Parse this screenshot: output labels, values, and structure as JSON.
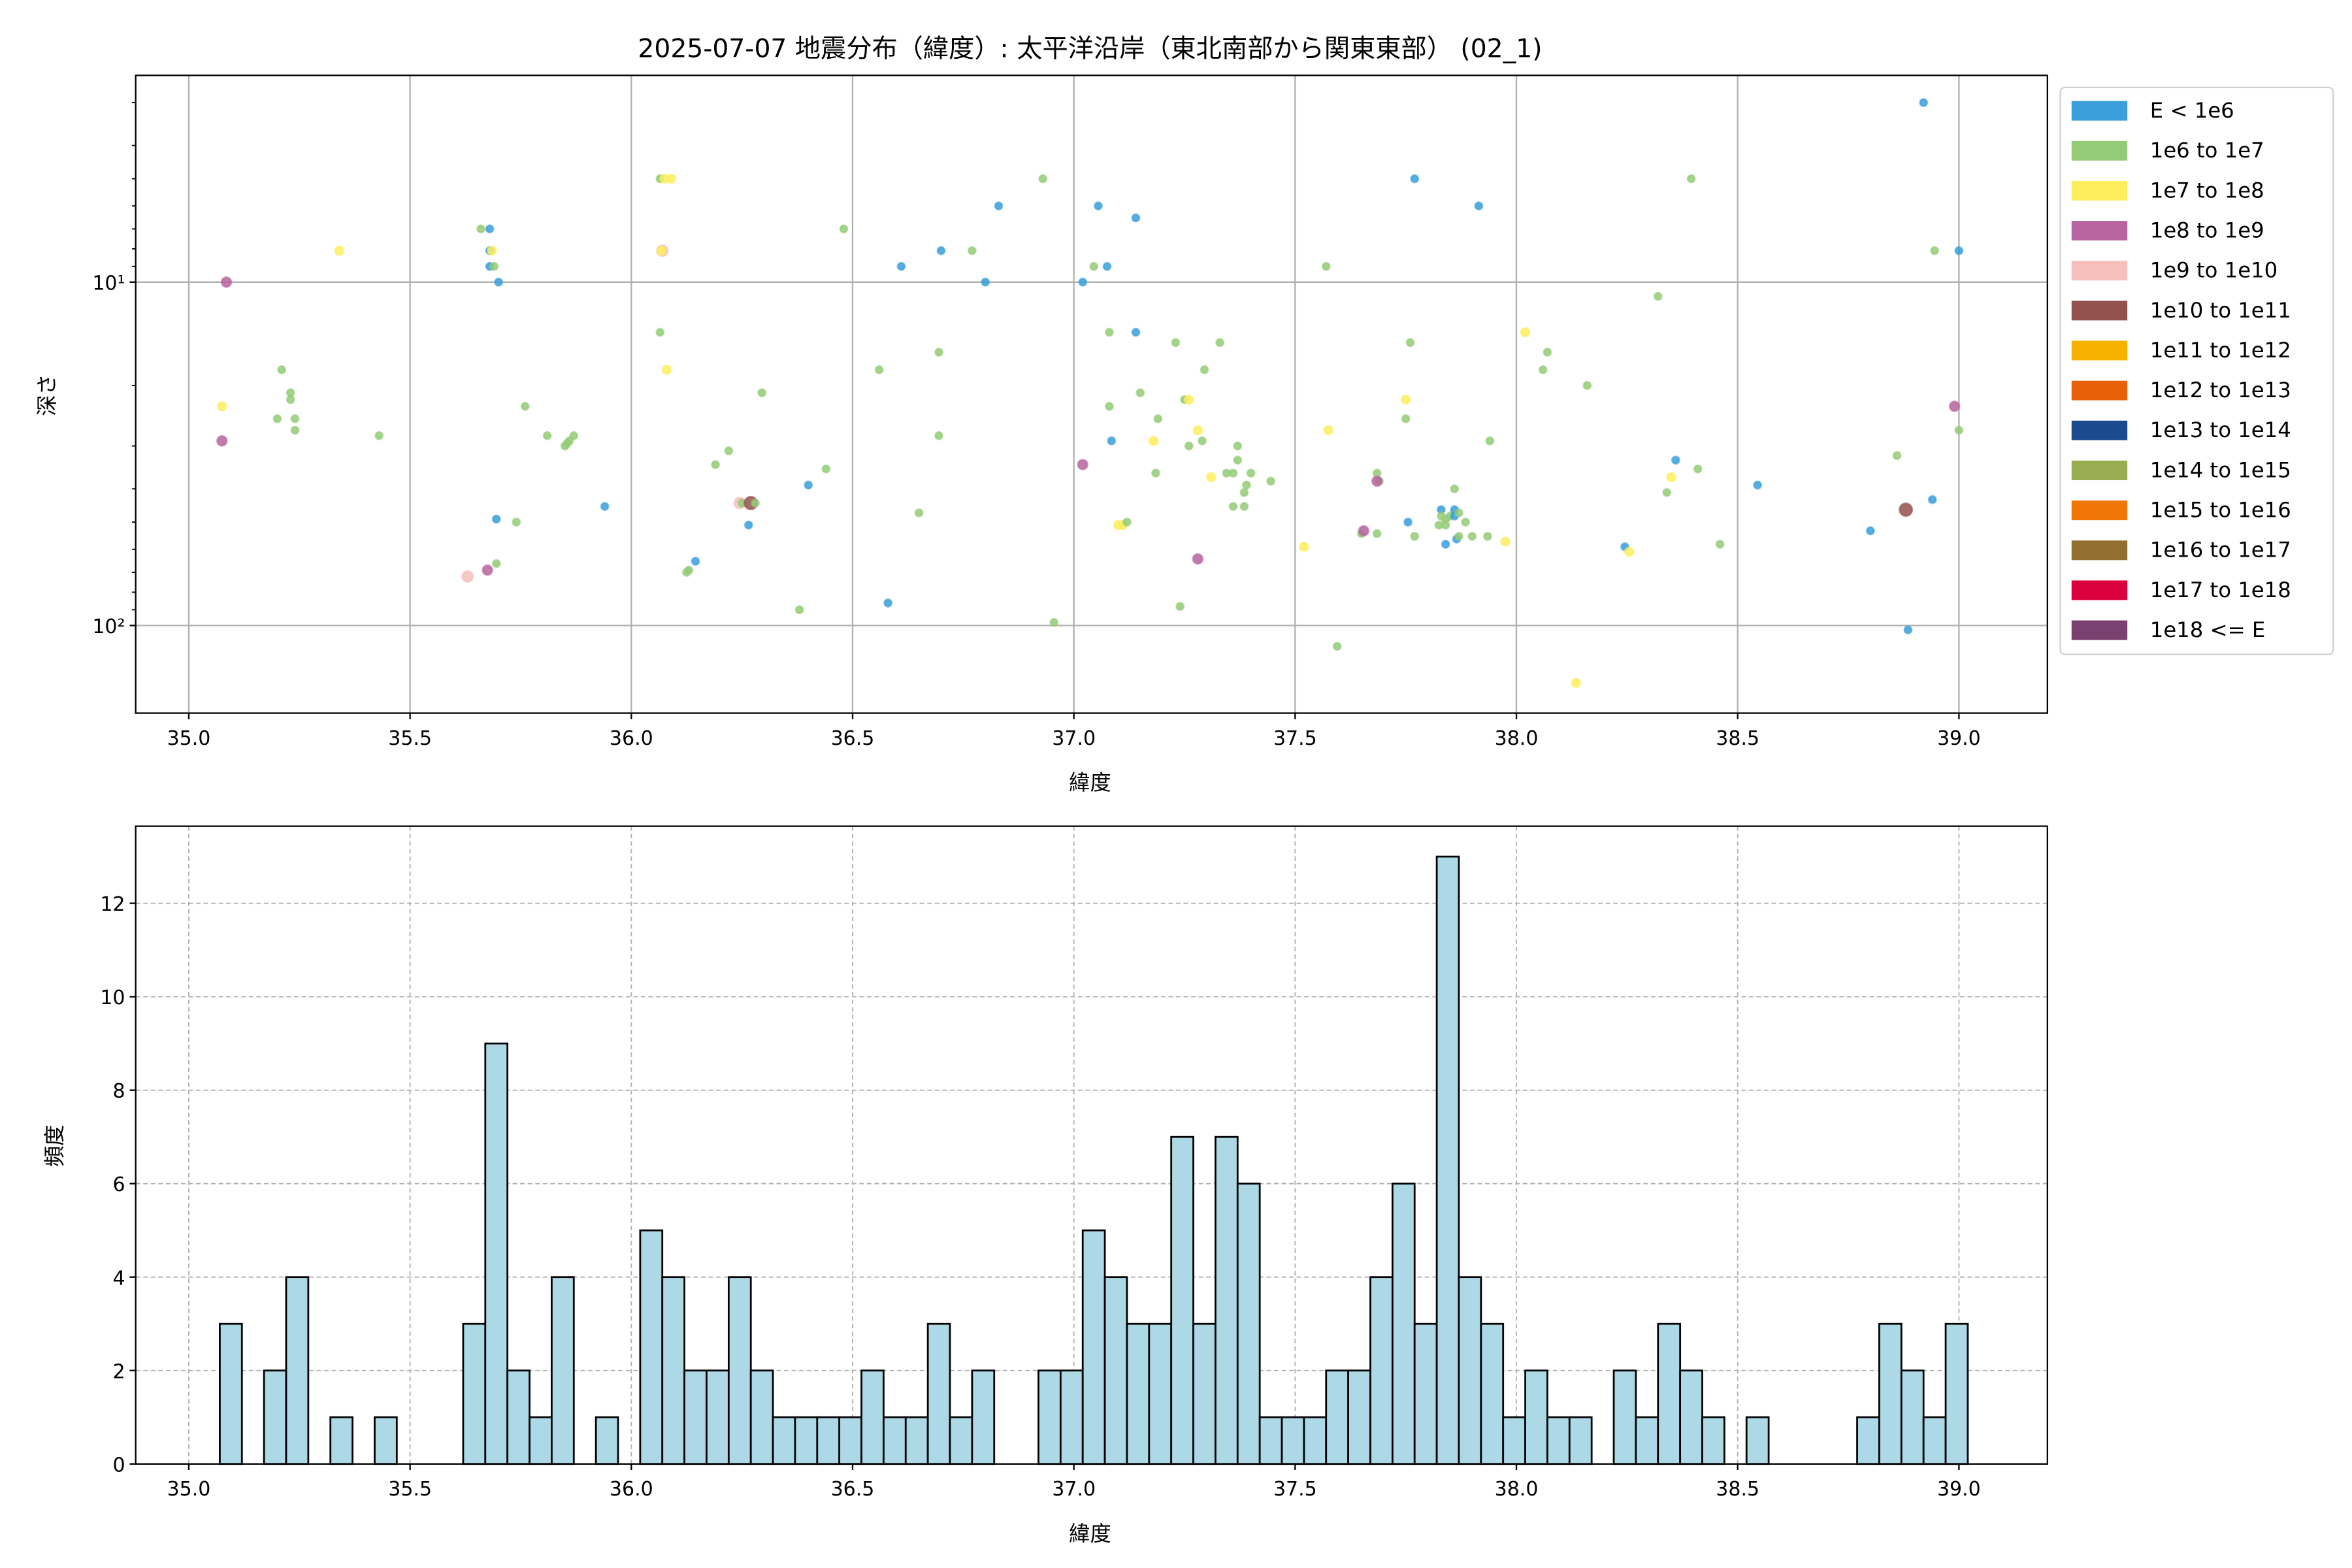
{
  "title": "2025-07-07 地震分布（緯度）: 太平洋沿岸（東北南部から関東東部） (02_1)",
  "chart_data": [
    {
      "type": "scatter",
      "xlabel": "緯度",
      "ylabel": "深さ",
      "xlim": [
        34.88,
        39.2
      ],
      "ylim": [
        180,
        2.5
      ],
      "yscale": "log",
      "y_inverted": true,
      "x_ticks": [
        "35.0",
        "35.5",
        "36.0",
        "36.5",
        "37.0",
        "37.5",
        "38.0",
        "38.5",
        "39.0"
      ],
      "y_ticks": [
        {
          "value": 10,
          "label": "10¹"
        },
        {
          "value": 100,
          "label": "10²"
        }
      ],
      "grid": true,
      "legend_position": "outside-right",
      "legend": [
        {
          "label": "E < 1e6",
          "color": "#3a9fdb"
        },
        {
          "label": "1e6 to 1e7",
          "color": "#94cb77"
        },
        {
          "label": "1e7 to 1e8",
          "color": "#fdee5e"
        },
        {
          "label": "1e8 to 1e9",
          "color": "#b8649f"
        },
        {
          "label": "1e9 to 1e10",
          "color": "#f5bfbb"
        },
        {
          "label": "1e10 to 1e11",
          "color": "#93524d"
        },
        {
          "label": "1e11 to 1e12",
          "color": "#f7b200"
        },
        {
          "label": "1e12 to 1e13",
          "color": "#e9600a"
        },
        {
          "label": "1e13 to 1e14",
          "color": "#1c4a8e"
        },
        {
          "label": "1e14 to 1e15",
          "color": "#9aad50"
        },
        {
          "label": "1e15 to 1e16",
          "color": "#f07705"
        },
        {
          "label": "1e16 to 1e17",
          "color": "#936f2f"
        },
        {
          "label": "1e17 to 1e18",
          "color": "#d9003b"
        },
        {
          "label": "1e18 <= E",
          "color": "#7a4070"
        }
      ],
      "points_format": [
        "latitude",
        "depth",
        "energy_class_index"
      ],
      "points": [
        [
          35.085,
          10,
          3
        ],
        [
          35.075,
          23,
          2
        ],
        [
          35.075,
          29,
          3
        ],
        [
          35.34,
          8.1,
          2
        ],
        [
          35.21,
          18,
          1
        ],
        [
          35.23,
          21,
          1
        ],
        [
          35.23,
          22,
          1
        ],
        [
          35.2,
          25,
          1
        ],
        [
          35.24,
          25,
          1
        ],
        [
          35.24,
          27,
          1
        ],
        [
          35.43,
          28,
          1
        ],
        [
          35.66,
          7,
          1
        ],
        [
          35.68,
          7,
          0
        ],
        [
          35.68,
          8.1,
          0
        ],
        [
          35.685,
          8.1,
          2
        ],
        [
          35.68,
          9,
          0
        ],
        [
          35.69,
          9,
          1
        ],
        [
          35.7,
          10,
          0
        ],
        [
          35.76,
          23,
          1
        ],
        [
          35.81,
          28,
          1
        ],
        [
          35.85,
          30,
          1
        ],
        [
          35.86,
          29,
          1
        ],
        [
          35.855,
          29.5,
          1
        ],
        [
          35.87,
          28,
          1
        ],
        [
          35.695,
          49,
          0
        ],
        [
          35.74,
          50,
          1
        ],
        [
          35.94,
          45,
          0
        ],
        [
          35.63,
          72,
          4
        ],
        [
          35.675,
          69,
          3
        ],
        [
          35.695,
          66,
          1
        ],
        [
          36.065,
          5,
          1
        ],
        [
          36.075,
          5,
          2
        ],
        [
          36.09,
          5,
          2
        ],
        [
          36.07,
          8.1,
          4
        ],
        [
          36.068,
          8.1,
          2
        ],
        [
          36.065,
          14,
          1
        ],
        [
          36.08,
          18,
          2
        ],
        [
          36.19,
          34,
          1
        ],
        [
          36.22,
          31,
          1
        ],
        [
          36.295,
          21,
          1
        ],
        [
          36.245,
          44,
          4
        ],
        [
          36.25,
          44,
          1
        ],
        [
          36.27,
          44,
          5
        ],
        [
          36.28,
          44,
          1
        ],
        [
          36.265,
          51,
          0
        ],
        [
          36.13,
          69,
          1
        ],
        [
          36.125,
          70,
          1
        ],
        [
          36.145,
          65,
          0
        ],
        [
          36.38,
          90,
          1
        ],
        [
          36.4,
          39,
          0
        ],
        [
          36.44,
          35,
          1
        ],
        [
          36.48,
          7,
          1
        ],
        [
          36.56,
          18,
          1
        ],
        [
          36.58,
          86,
          0
        ],
        [
          36.61,
          9,
          0
        ],
        [
          36.65,
          47,
          1
        ],
        [
          36.7,
          8.1,
          0
        ],
        [
          36.695,
          16,
          1
        ],
        [
          36.695,
          28,
          1
        ],
        [
          36.77,
          8.1,
          1
        ],
        [
          36.8,
          10,
          0
        ],
        [
          36.83,
          6,
          0
        ],
        [
          36.93,
          5,
          1
        ],
        [
          36.955,
          98,
          1
        ],
        [
          37.02,
          10,
          0
        ],
        [
          37.045,
          9,
          1
        ],
        [
          37.055,
          6,
          0
        ],
        [
          37.075,
          9,
          0
        ],
        [
          37.08,
          14,
          1
        ],
        [
          37.08,
          23,
          1
        ],
        [
          37.085,
          29,
          0
        ],
        [
          37.02,
          34,
          3
        ],
        [
          37.1,
          51,
          2
        ],
        [
          37.11,
          51,
          2
        ],
        [
          37.12,
          50,
          1
        ],
        [
          37.14,
          6.5,
          0
        ],
        [
          37.14,
          14,
          0
        ],
        [
          37.15,
          21,
          1
        ],
        [
          37.19,
          25,
          1
        ],
        [
          37.18,
          29,
          2
        ],
        [
          37.185,
          36,
          1
        ],
        [
          37.23,
          15,
          1
        ],
        [
          37.25,
          22,
          1
        ],
        [
          37.26,
          22,
          2
        ],
        [
          37.26,
          30,
          1
        ],
        [
          37.28,
          27,
          2
        ],
        [
          37.29,
          29,
          1
        ],
        [
          37.295,
          18,
          1
        ],
        [
          37.31,
          37,
          2
        ],
        [
          37.24,
          88,
          1
        ],
        [
          37.28,
          64,
          3
        ],
        [
          37.33,
          15,
          1
        ],
        [
          37.345,
          36,
          1
        ],
        [
          37.36,
          36,
          1
        ],
        [
          37.37,
          33,
          1
        ],
        [
          37.37,
          30,
          1
        ],
        [
          37.36,
          45,
          1
        ],
        [
          37.385,
          41,
          1
        ],
        [
          37.39,
          39,
          1
        ],
        [
          37.4,
          36,
          1
        ],
        [
          37.385,
          45,
          1
        ],
        [
          37.445,
          38,
          1
        ],
        [
          37.52,
          59,
          2
        ],
        [
          37.57,
          9,
          1
        ],
        [
          37.575,
          27,
          2
        ],
        [
          37.595,
          115,
          1
        ],
        [
          37.65,
          54,
          1
        ],
        [
          37.655,
          53,
          3
        ],
        [
          37.685,
          54,
          1
        ],
        [
          37.69,
          38,
          1
        ],
        [
          37.685,
          36,
          1
        ],
        [
          37.685,
          38,
          3
        ],
        [
          37.75,
          25,
          1
        ],
        [
          37.75,
          22,
          2
        ],
        [
          37.76,
          15,
          1
        ],
        [
          37.77,
          5,
          0
        ],
        [
          37.755,
          50,
          0
        ],
        [
          37.77,
          55,
          1
        ],
        [
          37.83,
          46,
          0
        ],
        [
          37.83,
          48,
          1
        ],
        [
          37.84,
          49,
          1
        ],
        [
          37.85,
          48,
          1
        ],
        [
          37.86,
          46,
          0
        ],
        [
          37.86,
          48,
          0
        ],
        [
          37.87,
          47,
          1
        ],
        [
          37.885,
          50,
          1
        ],
        [
          37.825,
          51,
          1
        ],
        [
          37.84,
          51,
          1
        ],
        [
          37.84,
          58,
          0
        ],
        [
          37.865,
          56,
          0
        ],
        [
          37.87,
          55,
          1
        ],
        [
          37.9,
          55,
          1
        ],
        [
          37.86,
          40,
          1
        ],
        [
          37.915,
          6,
          0
        ],
        [
          37.94,
          29,
          1
        ],
        [
          37.935,
          55,
          1
        ],
        [
          37.975,
          57,
          2
        ],
        [
          38.02,
          14,
          2
        ],
        [
          38.06,
          18,
          1
        ],
        [
          38.07,
          16,
          1
        ],
        [
          38.16,
          20,
          1
        ],
        [
          38.135,
          147,
          2
        ],
        [
          38.32,
          11,
          1
        ],
        [
          38.34,
          41,
          1
        ],
        [
          38.35,
          37,
          2
        ],
        [
          38.36,
          33,
          0
        ],
        [
          38.395,
          5,
          1
        ],
        [
          38.41,
          35,
          1
        ],
        [
          38.46,
          58,
          1
        ],
        [
          38.245,
          59,
          0
        ],
        [
          38.255,
          61,
          2
        ],
        [
          38.545,
          39,
          0
        ],
        [
          38.8,
          53,
          0
        ],
        [
          38.86,
          32,
          1
        ],
        [
          38.88,
          46,
          5
        ],
        [
          38.885,
          103,
          0
        ],
        [
          38.92,
          3.0,
          0
        ],
        [
          38.94,
          43,
          0
        ],
        [
          38.945,
          8.1,
          1
        ],
        [
          38.99,
          23,
          3
        ],
        [
          39.0,
          8.1,
          0
        ],
        [
          39.0,
          27,
          1
        ]
      ]
    },
    {
      "type": "bar",
      "subtype": "histogram",
      "xlabel": "緯度",
      "ylabel": "頻度",
      "xlim": [
        34.88,
        39.2
      ],
      "ylim": [
        0,
        13.65
      ],
      "x_ticks": [
        "35.0",
        "35.5",
        "36.0",
        "36.5",
        "37.0",
        "37.5",
        "38.0",
        "38.5",
        "39.0"
      ],
      "y_ticks": [
        "0",
        "2",
        "4",
        "6",
        "8",
        "10",
        "12"
      ],
      "grid": true,
      "bar_color": "#add8e6",
      "bin_range": [
        35.07,
        39.02
      ],
      "counts": [
        3,
        0,
        2,
        4,
        0,
        1,
        0,
        1,
        0,
        0,
        0,
        3,
        9,
        2,
        1,
        4,
        0,
        1,
        0,
        5,
        4,
        2,
        2,
        4,
        2,
        1,
        1,
        1,
        1,
        2,
        1,
        1,
        3,
        1,
        2,
        0,
        0,
        2,
        2,
        5,
        4,
        3,
        3,
        7,
        3,
        7,
        6,
        1,
        1,
        1,
        2,
        2,
        4,
        6,
        3,
        13,
        4,
        3,
        1,
        2,
        1,
        1,
        0,
        2,
        1,
        3,
        2,
        1,
        0,
        1,
        0,
        0,
        0,
        0,
        1,
        3,
        2,
        1,
        3
      ]
    }
  ]
}
